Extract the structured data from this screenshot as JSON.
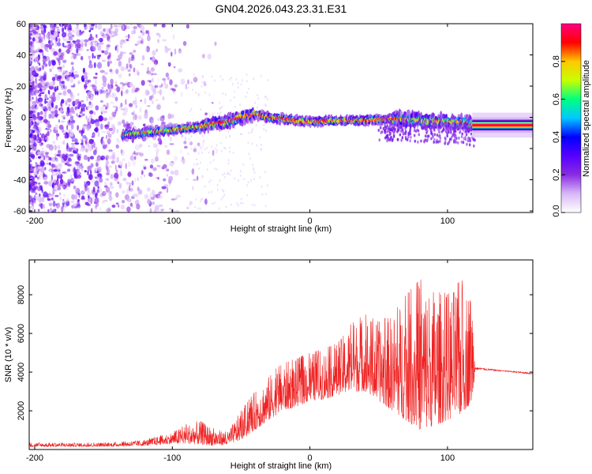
{
  "title": "GN04.2026.043.23.31.E31",
  "chart_data": [
    {
      "type": "heatmap",
      "name": "spectrogram",
      "xlabel": "Height of straight line (km)",
      "ylabel": "Frequency (Hz)",
      "xlim": [
        -204,
        162
      ],
      "ylim": [
        -61,
        60
      ],
      "xticks": [
        -200,
        -100,
        0,
        100
      ],
      "yticks": [
        -60,
        -40,
        -20,
        0,
        20,
        40,
        60
      ],
      "colorbar": {
        "label": "Normalized spectral amplitude",
        "range": [
          0,
          1
        ],
        "ticks": [
          0.0,
          0.2,
          0.4,
          0.6,
          0.8
        ],
        "tick_labels": [
          "0.0",
          "0.2",
          "0.4",
          "0.6",
          "0.8"
        ]
      },
      "colormap": [
        "#ffffff",
        "#d8b8f8",
        "#8a2be2",
        "#5500ff",
        "#0000ff",
        "#00c8ff",
        "#00ff80",
        "#c8ff00",
        "#ffc800",
        "#ff0000",
        "#ff0080"
      ],
      "track_centerline": {
        "x": [
          -135,
          -120,
          -100,
          -80,
          -70,
          -60,
          -50,
          -40,
          -30,
          -20,
          -10,
          0,
          20,
          40,
          60,
          80,
          100,
          115,
          120,
          162
        ],
        "freq": [
          -11,
          -10,
          -8,
          -6,
          -4,
          -3,
          0,
          2,
          0,
          -1,
          -2,
          -3,
          -2,
          -2,
          -1,
          -2,
          -3,
          -4,
          -5,
          -5
        ]
      }
    },
    {
      "type": "line",
      "name": "snr",
      "xlabel": "Height of straight line (km)",
      "ylabel": "SNR (10 * v/v)",
      "xlim": [
        -204,
        162
      ],
      "ylim": [
        0,
        9800
      ],
      "xticks": [
        -200,
        -100,
        0,
        100
      ],
      "yticks": [
        2000,
        4000,
        6000,
        8000
      ],
      "color": "#ee2222",
      "envelope": {
        "x": [
          -204,
          -150,
          -120,
          -100,
          -90,
          -80,
          -70,
          -60,
          -50,
          -40,
          -30,
          -20,
          -10,
          0,
          10,
          20,
          30,
          40,
          50,
          60,
          70,
          80,
          90,
          100,
          110,
          118,
          120,
          140,
          162
        ],
        "baseline": [
          150,
          150,
          200,
          300,
          300,
          250,
          200,
          250,
          500,
          1000,
          1500,
          2000,
          2200,
          2500,
          2600,
          2800,
          3000,
          3000,
          2500,
          2000,
          1500,
          1000,
          1200,
          1500,
          1800,
          2500,
          4000,
          4000,
          3800
        ],
        "peak": [
          350,
          350,
          500,
          900,
          1300,
          1500,
          1100,
          900,
          2000,
          3000,
          3800,
          4500,
          4700,
          5000,
          5200,
          5500,
          6500,
          7000,
          6600,
          7000,
          8000,
          8800,
          8500,
          8000,
          8800,
          8200,
          4300,
          4100,
          4000
        ]
      }
    }
  ]
}
